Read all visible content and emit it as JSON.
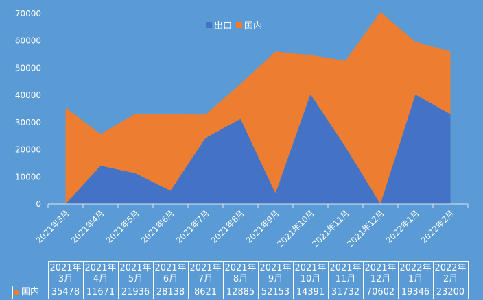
{
  "title": "",
  "legend": {
    "items": [
      {
        "label": "出口",
        "color": "#4472c4"
      },
      {
        "label": "国内",
        "color": "#ed7d31"
      }
    ]
  },
  "table": {
    "row_label": "国内",
    "categories": [
      "2021年\n3月",
      "2021年\n4月",
      "2021年\n5月",
      "2021年\n6月",
      "2021年\n7月",
      "2021年\n8月",
      "2021年\n9月",
      "2021年\n10月",
      "2021年\n11月",
      "2021年\n12月",
      "2022年\n1月",
      "2022年\n2月"
    ]
  },
  "chart_data": {
    "type": "area",
    "stacked": true,
    "categories": [
      "2021年3月",
      "2021年4月",
      "2021年5月",
      "2021年6月",
      "2021年7月",
      "2021年8月",
      "2021年9月",
      "2021年10月",
      "2021年11月",
      "2021年12月",
      "2022年1月",
      "2022年2月"
    ],
    "series": [
      {
        "name": "出口",
        "color": "#4472c4",
        "values": [
          0,
          14100,
          11300,
          4900,
          24300,
          31300,
          3900,
          40400,
          21000,
          0,
          40300,
          33000
        ]
      },
      {
        "name": "国内",
        "color": "#ed7d31",
        "values": [
          35478,
          11671,
          21936,
          28138,
          8621,
          12885,
          52153,
          14391,
          31732,
          70602,
          19346,
          23200
        ]
      }
    ],
    "ylim": [
      0,
      70000
    ],
    "yticks": [
      0,
      10000,
      20000,
      30000,
      40000,
      50000,
      60000,
      70000
    ],
    "grid": false,
    "legend_position": "top"
  }
}
